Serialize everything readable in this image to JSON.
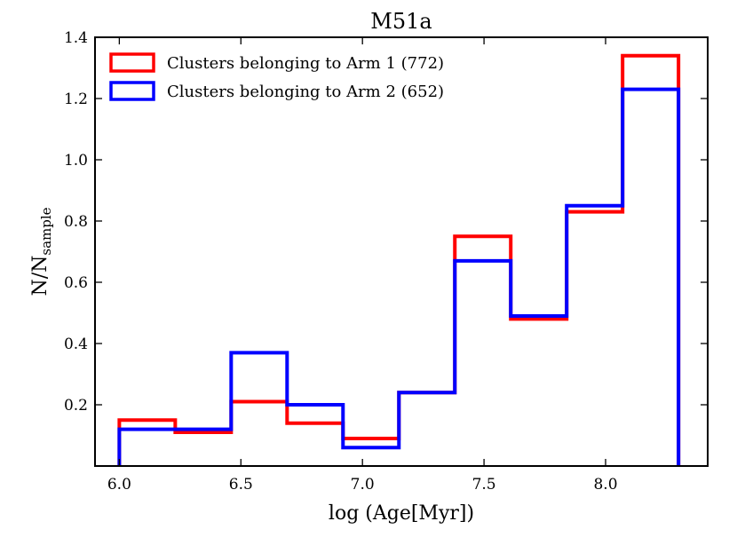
{
  "chart_data": {
    "type": "histogram-step",
    "title": "M51a",
    "xlabel": "log (Age[Myr])",
    "ylabel_main": "N/N",
    "ylabel_sub": "sample",
    "xlim": [
      5.9,
      8.42
    ],
    "ylim": [
      0.0,
      1.4
    ],
    "xticks": [
      6.0,
      6.5,
      7.0,
      7.5,
      8.0
    ],
    "xtick_labels": [
      "6.0",
      "6.5",
      "7.0",
      "7.5",
      "8.0"
    ],
    "yticks": [
      0.2,
      0.4,
      0.6,
      0.8,
      1.0,
      1.2,
      1.4
    ],
    "ytick_labels": [
      "0.2",
      "0.4",
      "0.6",
      "0.8",
      "1.0",
      "1.2",
      "1.4"
    ],
    "bin_edges": [
      6.0,
      6.23,
      6.46,
      6.69,
      6.92,
      7.15,
      7.38,
      7.61,
      7.84,
      8.07,
      8.3
    ],
    "legend_position": "top-left",
    "series": [
      {
        "name": "Clusters belonging to Arm 1 (772)",
        "color": "#ff0000",
        "values": [
          0.15,
          0.11,
          0.21,
          0.14,
          0.09,
          0.24,
          0.75,
          0.48,
          0.83,
          1.34
        ]
      },
      {
        "name": "Clusters belonging to Arm 2 (652)",
        "color": "#0000ff",
        "values": [
          0.12,
          0.12,
          0.37,
          0.2,
          0.06,
          0.24,
          0.67,
          0.49,
          0.85,
          1.23
        ]
      }
    ]
  }
}
